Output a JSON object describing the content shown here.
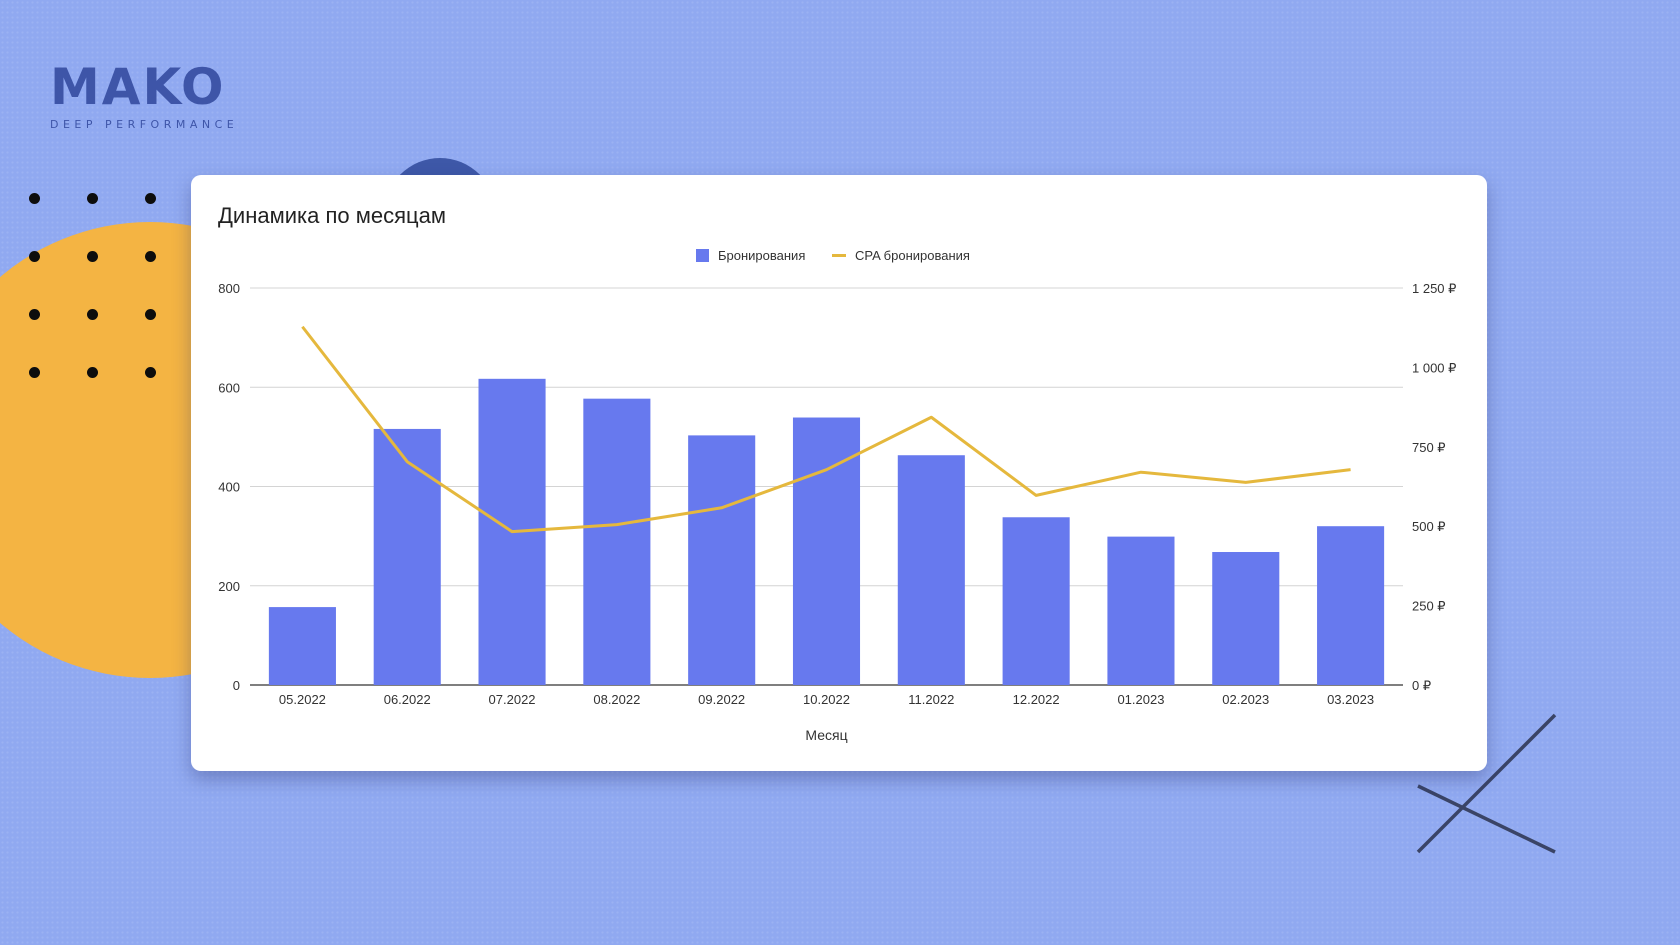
{
  "brand": {
    "name": "MAKO",
    "tagline": "DEEP PERFORMANCE"
  },
  "colors": {
    "background": "#90a9f1",
    "bars": "#6779ee",
    "line": "#e5b83d",
    "orange": "#f4b443",
    "navy": "#3e58a8"
  },
  "chart_data": {
    "type": "bar",
    "title": "Динамика по месяцам",
    "xlabel": "Месяц",
    "categories": [
      "05.2022",
      "06.2022",
      "07.2022",
      "08.2022",
      "09.2022",
      "10.2022",
      "11.2022",
      "12.2022",
      "01.2023",
      "02.2023",
      "03.2023"
    ],
    "series": [
      {
        "name": "Бронирования",
        "type": "bar",
        "axis": "left",
        "values": [
          157,
          516,
          617,
          577,
          503,
          539,
          463,
          338,
          299,
          268,
          320
        ]
      },
      {
        "name": "CPA бронирования",
        "type": "line",
        "axis": "right",
        "values": [
          1128,
          703,
          483,
          505,
          558,
          678,
          843,
          597,
          670,
          638,
          678
        ]
      }
    ],
    "ylim_left": [
      0,
      800
    ],
    "yticks_left": [
      "0",
      "200",
      "400",
      "600",
      "800"
    ],
    "ylim_right": [
      0,
      1250
    ],
    "yticks_right": [
      "0 ₽",
      "250 ₽",
      "500 ₽",
      "750 ₽",
      "1 000 ₽",
      "1 250 ₽"
    ],
    "grid": true,
    "legend_position": "top-center"
  }
}
